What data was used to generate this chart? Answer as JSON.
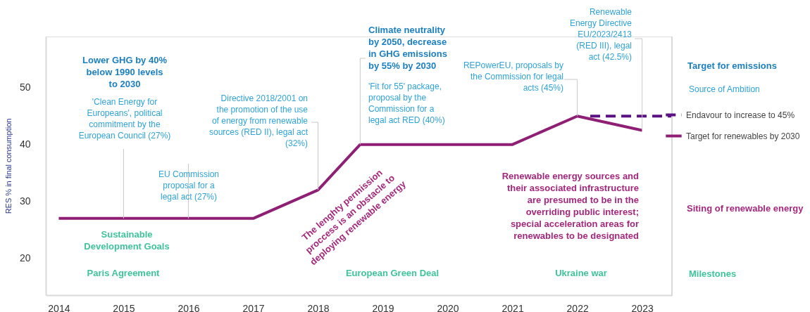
{
  "chart_data": {
    "type": "line",
    "ylabel": "RES % in final consumption",
    "xlim": [
      2013.8,
      2023.46
    ],
    "xticks": [
      2014,
      2015,
      2016,
      2017,
      2018,
      2019,
      2020,
      2021,
      2022,
      2023
    ],
    "ylim": [
      13.5,
      59
    ],
    "yticks": [
      20,
      30,
      40,
      50
    ],
    "legend": "right",
    "series": [
      {
        "name": "Endavour to increase to 45%",
        "color": "#5c1183",
        "line_style": "dashed",
        "x": [
          2022.2,
          2023.46
        ],
        "values": [
          45,
          45
        ]
      },
      {
        "name": "Target for renewables by 2030",
        "color": "#8e1f74",
        "line_style": "solid",
        "x": [
          2014,
          2017,
          2018,
          2018.65,
          2021,
          2022,
          2023
        ],
        "values": [
          27,
          27,
          32,
          40,
          40,
          45,
          42.5
        ]
      }
    ],
    "annotations": [
      "Lower GHG by 40%\nbelow 1990 levels\nto 2030",
      {
        "text": "'Clean Energy for\nEuropeans', political\ncommitment by the\nEuropean Council (27%)",
        "x": 2015,
        "y": 27
      },
      {
        "text": "EU Commission\nproposal for a\nlegal act (27%)",
        "x": 2016,
        "y": 27
      },
      {
        "text": "Directive 2018/2001 on\nthe promotion of the use\nof energy from renewable\nsources (RED II), legal act\n(32%)",
        "x": 2018,
        "y": 32
      },
      {
        "text": "Climate neutrality\nby 2050, decrease\nin GHG emissions\nby 55% by 2030",
        "x": 2018.65,
        "y": 40
      },
      "'Fit for 55' package,\nproposal by the\nCommission for a\nlegal act RED (40%)",
      {
        "text": "REPowerEU, proposals by\nthe Commission for legal\nacts (45%)",
        "x": 2022,
        "y": 45
      },
      {
        "text": "Renewable\nEnergy Directive\nEU/2023/2413\n(RED III), legal\nact (42.5%)",
        "x": 2023,
        "y": 42.5
      },
      "The lenghty permission\nproccess is an obstacle to\ndeploying renewable energy",
      "Renewable energy sources and\ntheir associated infrastructure\nare presumed to be in the\noverriding public interest;\nspecial acceleration areas for\nrenewables to be designated",
      "Sustainable\nDevelopment Goals",
      "Paris Agreement",
      "European Green Deal",
      "Ukraine war",
      "Target for emissions",
      "Source of Ambition",
      "Siting of renewable energy",
      "Milestones"
    ]
  }
}
